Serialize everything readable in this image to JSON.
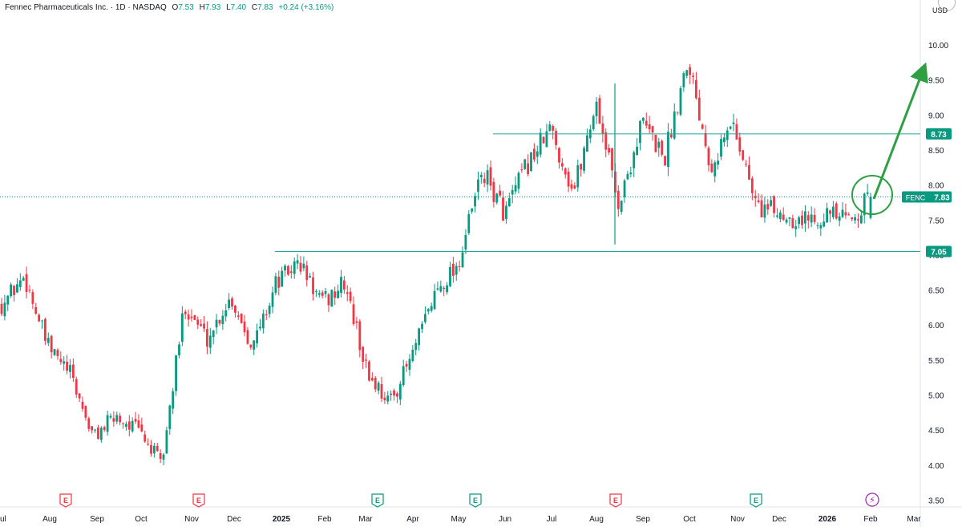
{
  "legend": {
    "symbol_name": "Fennec Pharmaceuticals Inc.",
    "interval": "1D",
    "exchange": "NASDAQ",
    "open_label": "O",
    "open": "7.53",
    "high_label": "H",
    "high": "7.93",
    "low_label": "L",
    "low": "7.40",
    "close_label": "C",
    "close": "7.83",
    "change": "+0.24 (+3.16%)"
  },
  "currency_label": "USD",
  "colors": {
    "up": "#089981",
    "down": "#f23645",
    "level_line": "#26a69a",
    "arrow": "#2ea043",
    "axis_text": "#131722"
  },
  "chart_data": {
    "type": "candlestick",
    "symbol": "FENC",
    "y_axis": {
      "range": [
        3.3,
        10.5
      ],
      "ticks": [
        "3.50",
        "4.00",
        "4.50",
        "5.00",
        "5.50",
        "6.00",
        "6.50",
        "7.00",
        "7.50",
        "8.00",
        "8.50",
        "9.00",
        "9.50",
        "10.00"
      ]
    },
    "x_axis": {
      "ticks": [
        "Jul",
        "Aug",
        "Sep",
        "Oct",
        "Nov",
        "Dec",
        "2025",
        "Feb",
        "Mar",
        "Apr",
        "May",
        "Jun",
        "Jul",
        "Aug",
        "Sep",
        "Oct",
        "Nov",
        "Dec",
        "2026",
        "Feb",
        "Mar"
      ],
      "bold_ticks": [
        "2025",
        "2026"
      ]
    },
    "price_path": [
      {
        "month": "Jul 2024",
        "price": 6.3
      },
      {
        "month": "Jul 2024",
        "price": 6.7
      },
      {
        "month": "Aug 2024",
        "price": 5.7
      },
      {
        "month": "Sep 2024",
        "price": 5.3
      },
      {
        "month": "Oct 2024",
        "price": 4.4
      },
      {
        "month": "Oct 2024",
        "price": 4.7
      },
      {
        "month": "Nov 2024",
        "price": 4.5
      },
      {
        "month": "Nov 2024",
        "price": 4.0
      },
      {
        "month": "Dec 2024",
        "price": 6.3
      },
      {
        "month": "Dec 2024",
        "price": 5.8
      },
      {
        "month": "Jan 2025",
        "price": 6.4
      },
      {
        "month": "Jan 2025",
        "price": 5.7
      },
      {
        "month": "Feb 2025",
        "price": 6.6
      },
      {
        "month": "Mar 2025",
        "price": 6.9
      },
      {
        "month": "Mar 2025",
        "price": 6.3
      },
      {
        "month": "Mar 2025",
        "price": 6.6
      },
      {
        "month": "Apr 2025",
        "price": 5.3
      },
      {
        "month": "Apr 2025",
        "price": 4.9
      },
      {
        "month": "May 2025",
        "price": 5.6
      },
      {
        "month": "May 2025",
        "price": 6.5
      },
      {
        "month": "May 2025",
        "price": 6.9
      },
      {
        "month": "Jun 2025",
        "price": 8.2
      },
      {
        "month": "Jun 2025",
        "price": 7.6
      },
      {
        "month": "Jul 2025",
        "price": 8.3
      },
      {
        "month": "Jul 2025",
        "price": 8.8
      },
      {
        "month": "Aug 2025",
        "price": 7.9
      },
      {
        "month": "Aug 2025",
        "price": 9.2
      },
      {
        "month": "Aug 2025",
        "price": 7.7
      },
      {
        "month": "Sep 2025",
        "price": 8.9
      },
      {
        "month": "Sep 2025",
        "price": 8.4
      },
      {
        "month": "Oct 2025",
        "price": 9.85
      },
      {
        "month": "Oct 2025",
        "price": 8.3
      },
      {
        "month": "Nov 2025",
        "price": 8.9
      },
      {
        "month": "Nov 2025",
        "price": 7.7
      },
      {
        "month": "Dec 2025",
        "price": 7.6
      },
      {
        "month": "Jan 2026",
        "price": 7.5
      },
      {
        "month": "Jan 2026",
        "price": 7.6
      },
      {
        "month": "Jan 2026",
        "price": 7.48
      },
      {
        "month": "Feb 2026",
        "price": 7.83
      }
    ],
    "spikes": [
      {
        "month": "Aug 2025",
        "high": 9.45,
        "low": 7.15
      }
    ],
    "horizontal_levels": [
      {
        "price": 8.73,
        "label": "8.73"
      },
      {
        "price": 7.05,
        "label": "7.05"
      }
    ],
    "last_price": {
      "symbol": "FENC",
      "price": 7.83,
      "label": "7.83"
    },
    "annotations": {
      "circle_around_last_candle": true,
      "arrow_target_price": 10.0
    },
    "event_markers": [
      {
        "type": "E",
        "style": "earnings-red"
      },
      {
        "type": "E",
        "style": "earnings-red"
      },
      {
        "type": "E",
        "style": "earnings-green"
      },
      {
        "type": "E",
        "style": "earnings-green"
      },
      {
        "type": "E",
        "style": "earnings-red"
      },
      {
        "type": "E",
        "style": "earnings-green"
      },
      {
        "type": "lightning",
        "style": "dividend-purple"
      }
    ]
  }
}
